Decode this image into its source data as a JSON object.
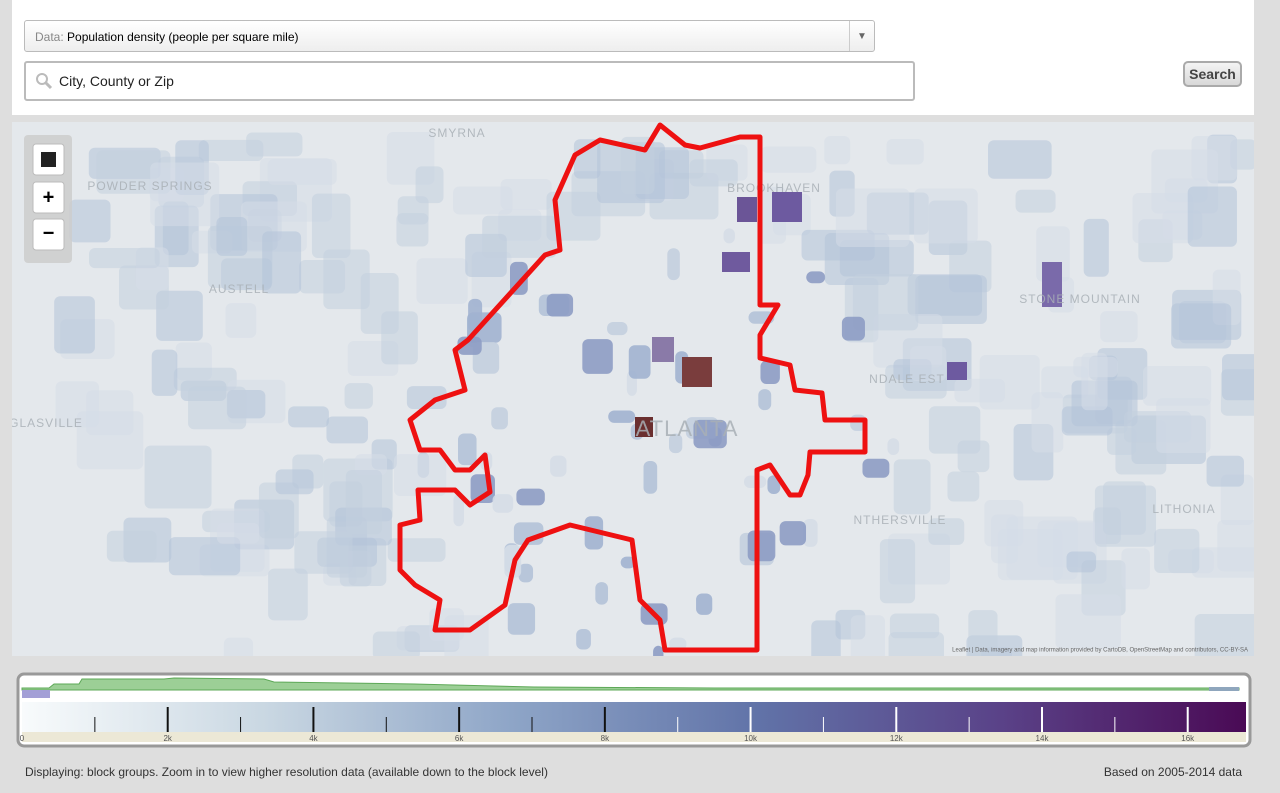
{
  "header": {
    "data_prefix": "Data:",
    "data_value": "Population density (people per square mile)",
    "search_placeholder": "City, County or Zip",
    "search_button": "Search"
  },
  "map": {
    "labels": [
      "SMYRNA",
      "POWDER SPRINGS",
      "AUSTELL",
      "BROOKHAVEN",
      "STONE MOUNTAIN",
      "ATLANTA",
      "GLASVILLE",
      "LITHONIA",
      "NTHERSVILLE",
      "NDALE EST"
    ],
    "attribution": "Leaflet | Data, imagery and map information provided by CartoDB, OpenStreetMap and contributors, CC-BY-SA",
    "boundary_color": "#ee1111"
  },
  "legend": {
    "range": [
      0,
      16800
    ],
    "colors": [
      "#f8fbfc",
      "#c9d7e2",
      "#8ea5c7",
      "#6173a8",
      "#5a4288",
      "#4a0a55"
    ],
    "ticks": [
      {
        "value": 0,
        "label": "0"
      },
      {
        "value": 2000,
        "label": "2k"
      },
      {
        "value": 4000,
        "label": "4k"
      },
      {
        "value": 6000,
        "label": "6k"
      },
      {
        "value": 8000,
        "label": "8k"
      },
      {
        "value": 10000,
        "label": "10k"
      },
      {
        "value": 12000,
        "label": "12k"
      },
      {
        "value": 14000,
        "label": "14k"
      },
      {
        "value": 16000,
        "label": "16k"
      }
    ]
  },
  "footer": {
    "left": "Displaying: block groups. Zoom in to view higher resolution data (available down to the block level)",
    "right": "Based on 2005-2014 data"
  }
}
